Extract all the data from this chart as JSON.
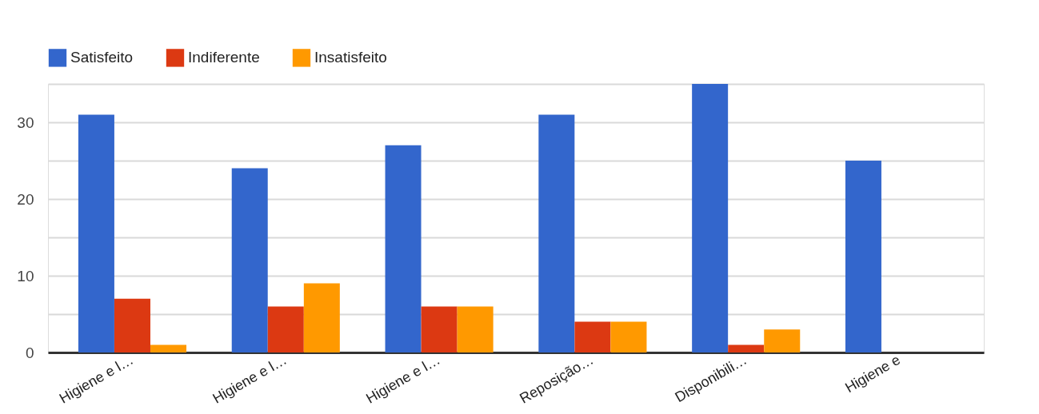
{
  "chart_data": {
    "type": "bar",
    "categories": [
      "Higiene e l…",
      "Higiene e l…",
      "Higiene e l…",
      "Reposição…",
      "Disponibili…",
      "Higiene e"
    ],
    "series": [
      {
        "name": "Satisfeito",
        "color": "#3366cc",
        "values": [
          31,
          24,
          27,
          31,
          35,
          25
        ]
      },
      {
        "name": "Indiferente",
        "color": "#dc3912",
        "values": [
          7,
          6,
          6,
          4,
          1,
          null
        ]
      },
      {
        "name": "Insatisfeito",
        "color": "#ff9900",
        "values": [
          1,
          9,
          6,
          4,
          3,
          null
        ]
      }
    ],
    "ylim": [
      0,
      35
    ],
    "yticks": [
      0,
      {
        "value": 5,
        "label": null
      },
      10,
      {
        "value": 15,
        "label": null
      },
      20,
      {
        "value": 25,
        "label": null
      },
      30,
      {
        "value": 35,
        "label": null
      }
    ],
    "grid": "y",
    "legend": "top left"
  }
}
